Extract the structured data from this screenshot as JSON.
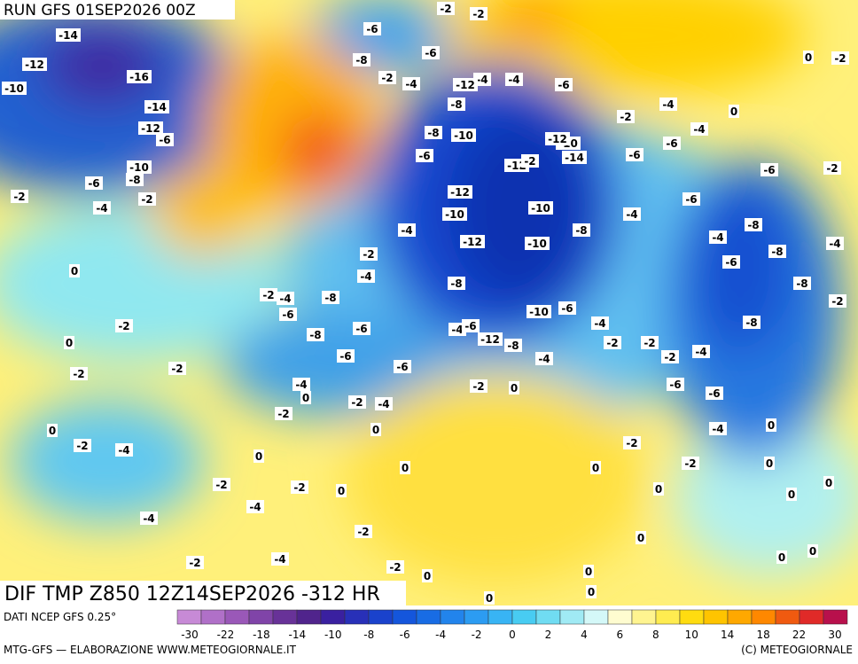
{
  "header": {
    "run": "RUN GFS 01SEP2026 00Z"
  },
  "map": {
    "title": "DIF TMP Z850 12Z14SEP2026 -312 HR",
    "contour_labels": [
      -14,
      -12,
      -10,
      -16,
      -14,
      -12,
      -6,
      -10,
      -6,
      -8,
      -2,
      -4,
      -2,
      -6,
      -8,
      -2,
      -6,
      -4,
      -8,
      -10,
      -8,
      -6,
      -12,
      -10,
      -14,
      -12,
      -10,
      -10,
      -12,
      -10,
      -8,
      -4,
      -6,
      -6,
      -4,
      -2,
      -6,
      -2,
      -6,
      -8,
      -4,
      -8,
      -6,
      -8,
      -2,
      -4,
      -4,
      -2,
      -4,
      -8,
      -10,
      -6,
      -8,
      -4,
      -2,
      -6,
      -8,
      -6,
      -6,
      -6,
      -4,
      -2,
      -4,
      -2,
      0,
      -4,
      -6,
      -12,
      -8,
      -4,
      -4,
      -2,
      -2,
      -2,
      -4,
      -6,
      -6,
      -8,
      -4,
      0,
      -2,
      -2,
      0,
      0,
      0,
      0,
      0,
      0,
      -2,
      0,
      -2,
      -2,
      0,
      -2,
      -4,
      0,
      -2,
      0,
      0,
      0,
      -2,
      -2,
      0,
      -4,
      -4,
      -2,
      -4,
      -2,
      -2,
      0,
      0,
      0,
      0,
      0,
      0,
      0,
      0,
      -2,
      -4,
      -2,
      -2,
      -4,
      -6,
      -4,
      -12,
      -12,
      -2,
      0
    ]
  },
  "footer": {
    "source": "DATI NCEP GFS 0.25°",
    "credit": "MTG-GFS — ELABORAZIONE WWW.METEOGIORNALE.IT",
    "copyright": "(C) METEOGIORNALE"
  },
  "colorbar": {
    "labels": [
      -30,
      -22,
      -18,
      -14,
      -10,
      -8,
      -6,
      -4,
      -2,
      0,
      2,
      4,
      6,
      8,
      10,
      14,
      18,
      22,
      30
    ],
    "colors": [
      "#c78ad6",
      "#b070c8",
      "#9a58b8",
      "#8044a8",
      "#683298",
      "#50248c",
      "#3a20a0",
      "#2830b8",
      "#1a42cc",
      "#1456dc",
      "#186ce4",
      "#2284ec",
      "#2c9cf2",
      "#38b4f4",
      "#48ccf2",
      "#70dcf2",
      "#a0eaf4",
      "#d4f8f8",
      "#fffcd0",
      "#fff490",
      "#ffec50",
      "#ffdc10",
      "#ffc400",
      "#ffa800",
      "#ff8800",
      "#f05a10",
      "#e02a28",
      "#b8104c"
    ]
  }
}
